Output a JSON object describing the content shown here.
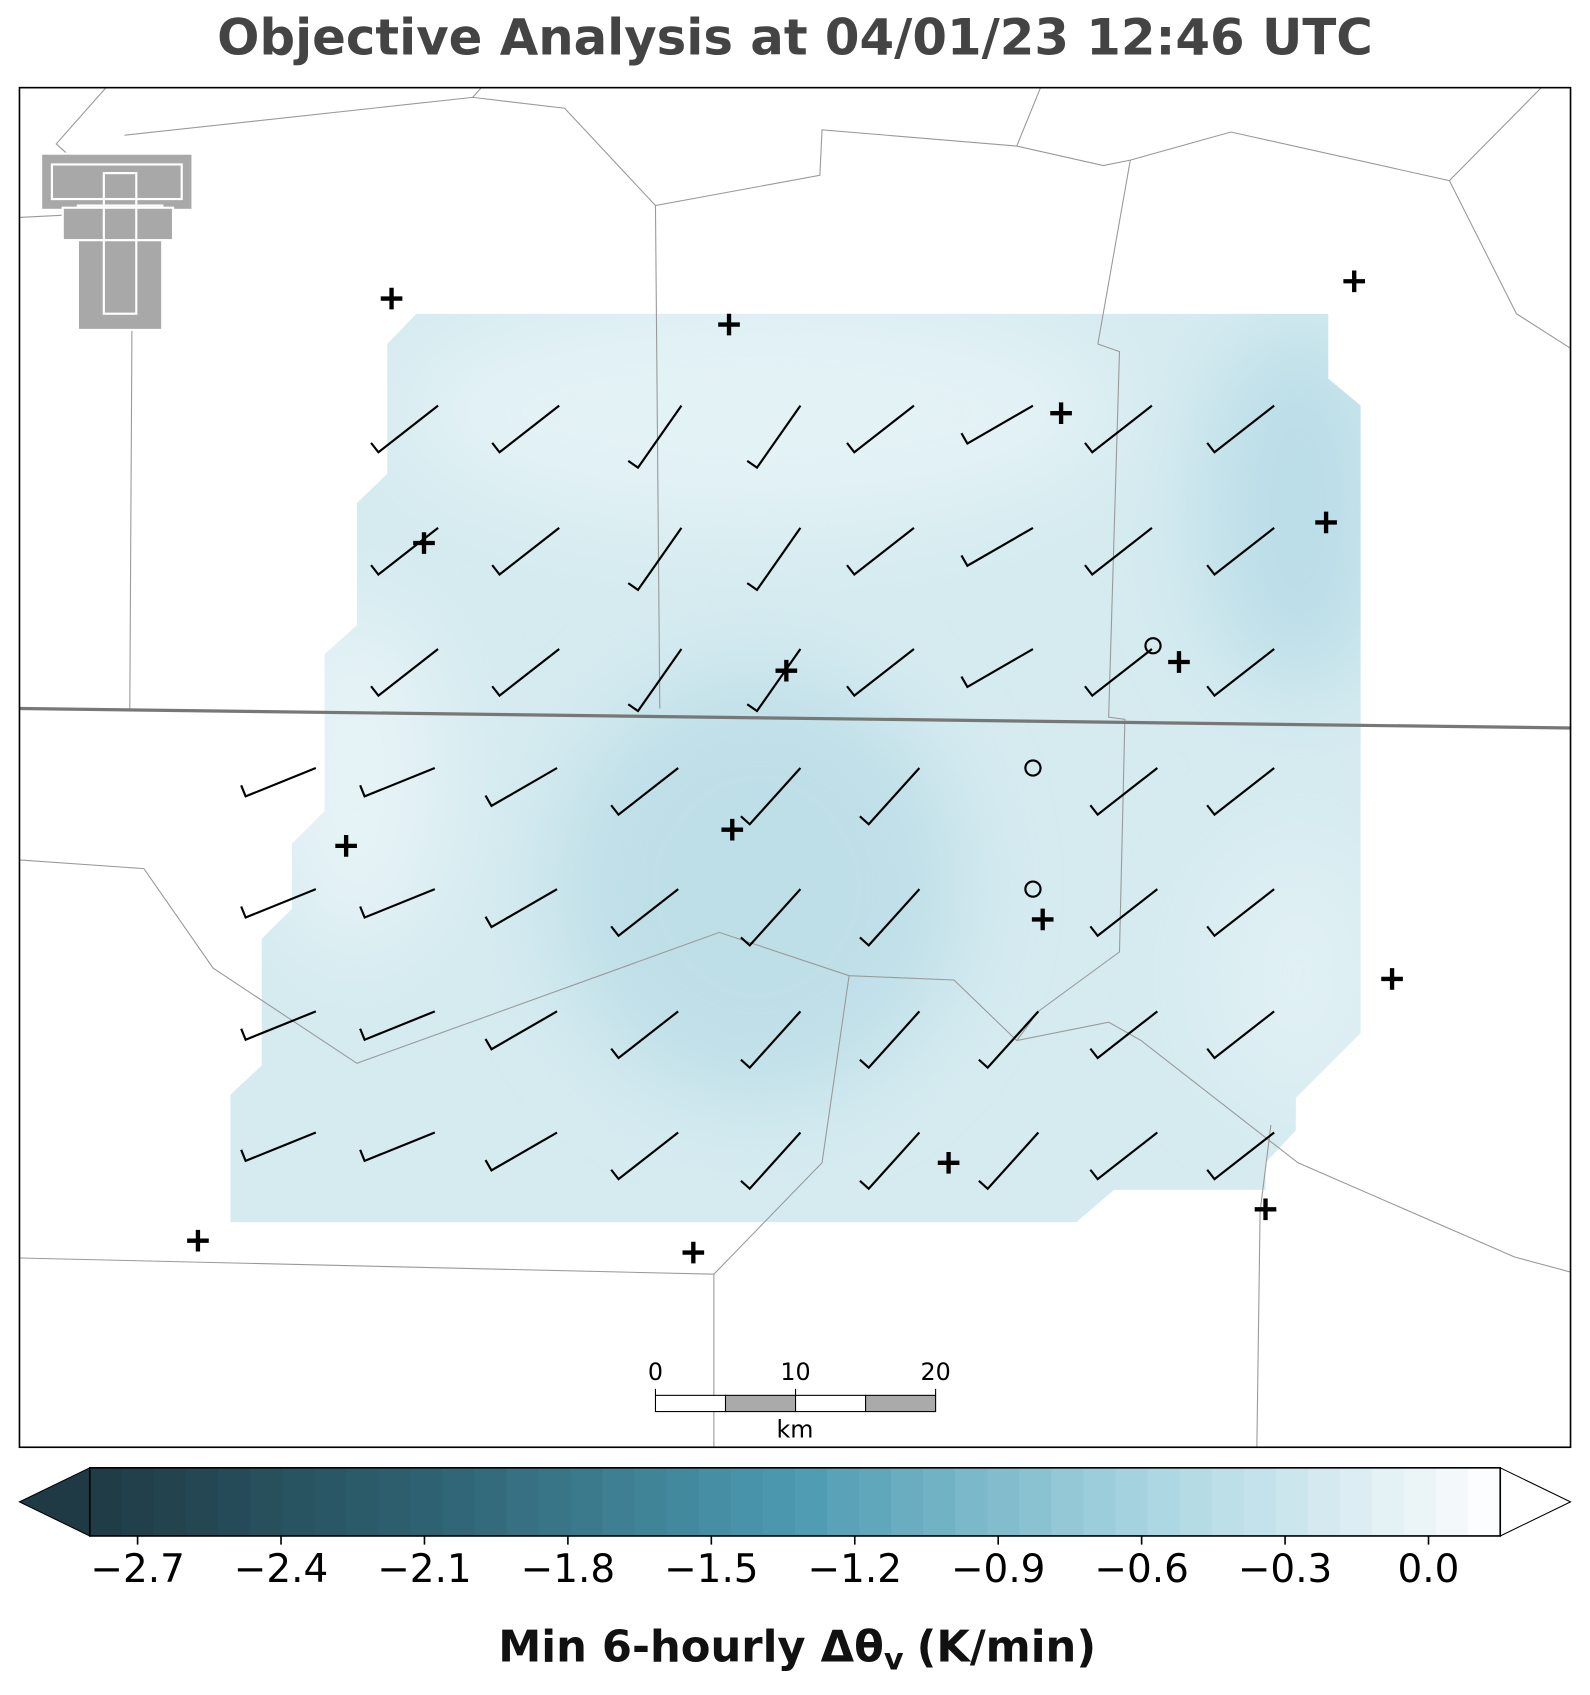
{
  "title": "Objective Analysis at 04/01/23 12:46 UTC",
  "colorbar": {
    "label": {
      "main": "Min 6-hourly Δθ",
      "subscript": "v",
      "unit": "(K/min)"
    },
    "range": [
      -2.8,
      0.15
    ],
    "ticks": [
      {
        "value": -2.7,
        "label": "−2.7"
      },
      {
        "value": -2.4,
        "label": "−2.4"
      },
      {
        "value": -2.1,
        "label": "−2.1"
      },
      {
        "value": -1.8,
        "label": "−1.8"
      },
      {
        "value": -1.5,
        "label": "−1.5"
      },
      {
        "value": -1.2,
        "label": "−1.2"
      },
      {
        "value": -0.9,
        "label": "−0.9"
      },
      {
        "value": -0.6,
        "label": "−0.6"
      },
      {
        "value": -0.3,
        "label": "−0.3"
      },
      {
        "value": 0,
        "label": "0.0"
      }
    ],
    "colormap": [
      "#1f3a44",
      "#2f6474",
      "#4c9ab1",
      "#a9d5e1",
      "#ffffff"
    ],
    "extend": "both"
  },
  "scale_bar": {
    "ticks": [
      0,
      10,
      20
    ],
    "unit": "km"
  }
}
